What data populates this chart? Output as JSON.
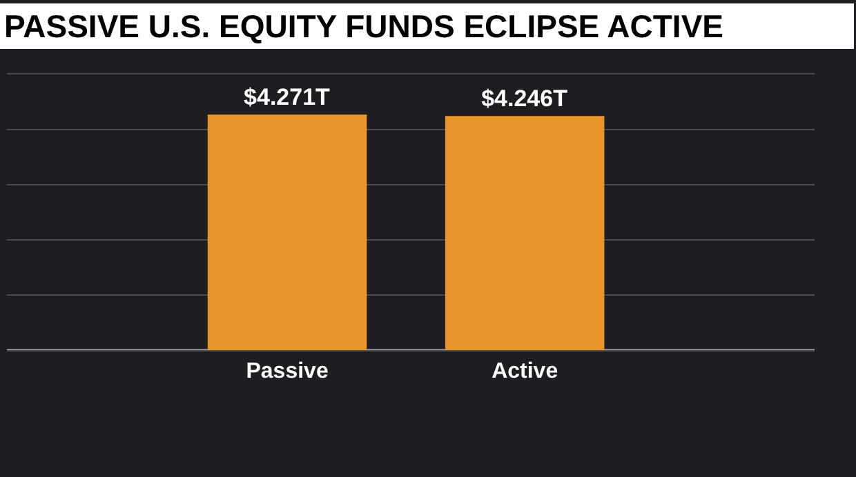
{
  "chart_data": {
    "type": "bar",
    "title": "PASSIVE U.S. EQUITY FUNDS ECLIPSE ACTIVE",
    "categories": [
      "Passive",
      "Active"
    ],
    "values": [
      4.271,
      4.246
    ],
    "value_labels": [
      "$4.271T",
      "$4.246T"
    ],
    "color": "#e8962a",
    "ylim": [
      0,
      5
    ],
    "yticks": [
      {
        "value": 0,
        "label": null
      },
      {
        "value": 1,
        "label": null
      },
      {
        "value": 2,
        "label": null
      },
      {
        "value": 3,
        "label": null
      },
      {
        "value": 4,
        "label": null
      },
      {
        "value": 5,
        "label": null
      }
    ],
    "tick_labels": "x",
    "grid": "y"
  }
}
